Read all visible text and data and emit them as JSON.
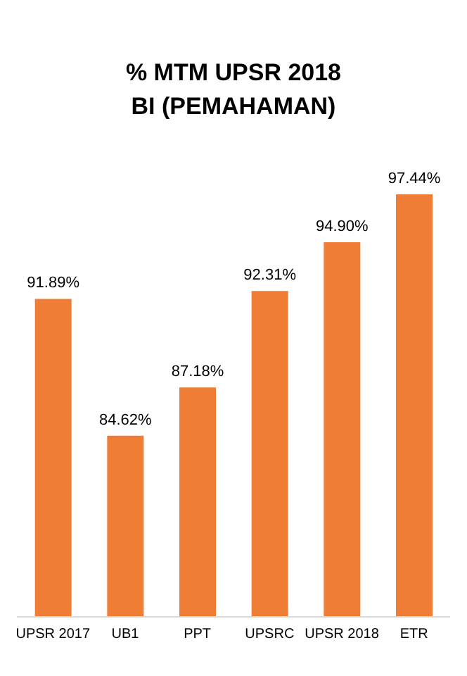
{
  "chart_data": {
    "type": "bar",
    "title": "% MTM UPSR 2018\nBI (PEMAHAMAN)",
    "categories": [
      "UPSR 2017",
      "UB1",
      "PPT",
      "UPSRC",
      "UPSR 2018",
      "ETR"
    ],
    "values": [
      91.89,
      84.62,
      87.18,
      92.31,
      94.9,
      97.44
    ],
    "value_labels": [
      "91.89%",
      "84.62%",
      "87.18%",
      "92.31%",
      "94.90%",
      "97.44%"
    ],
    "color": "#f07d35",
    "ylim": [
      75,
      97.44
    ],
    "tick_labels": "x"
  }
}
